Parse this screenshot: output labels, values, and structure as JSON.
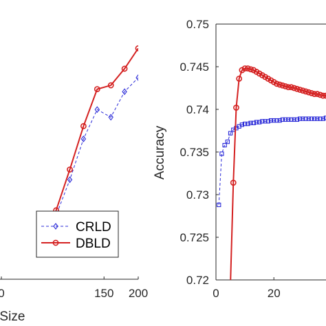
{
  "chart_data": [
    {
      "type": "line",
      "title": "",
      "xlabel": "Set Size",
      "xlabel_visible": "Set Size",
      "ylabel": "",
      "xlim": [
        0,
        200
      ],
      "ylim": [
        0,
        1
      ],
      "grid": false,
      "x_ticks": [
        0,
        150,
        200
      ],
      "x_tick_labels": [
        "0",
        "150",
        "200"
      ],
      "legend": {
        "placement": "bottom-right"
      },
      "series": [
        {
          "name": "CRLD",
          "color": "#2b2bd8",
          "line_style": "dashed",
          "marker": "diamond",
          "x": [
            60,
            80,
            100,
            120,
            140,
            160,
            180,
            200
          ],
          "y": [
            0.12,
            0.25,
            0.39,
            0.55,
            0.665,
            0.635,
            0.735,
            0.79
          ]
        },
        {
          "name": "DBLD",
          "color": "#d42020",
          "line_style": "solid",
          "marker": "circle",
          "x": [
            60,
            80,
            100,
            120,
            140,
            160,
            180,
            200
          ],
          "y": [
            0.12,
            0.27,
            0.43,
            0.6,
            0.745,
            0.76,
            0.825,
            0.905
          ]
        }
      ]
    },
    {
      "type": "line",
      "title": "",
      "xlabel": "",
      "ylabel": "Accuracy",
      "xlim": [
        0,
        38
      ],
      "ylim": [
        0.72,
        0.75
      ],
      "grid": false,
      "y_ticks": [
        0.72,
        0.725,
        0.73,
        0.735,
        0.74,
        0.745,
        0.75
      ],
      "y_tick_labels": [
        "0.72",
        "0.725",
        "0.73",
        "0.735",
        "0.74",
        "0.745",
        "0.75"
      ],
      "x_ticks": [
        0,
        20
      ],
      "x_tick_labels": [
        "0",
        "20"
      ],
      "series": [
        {
          "name": "CRLD",
          "color": "#2b2bd8",
          "line_style": "dashed",
          "marker": "square",
          "x": [
            1,
            2,
            3,
            4,
            5,
            6,
            7,
            8,
            9,
            10,
            11,
            12,
            13,
            14,
            15,
            16,
            17,
            18,
            19,
            20,
            21,
            22,
            23,
            24,
            25,
            26,
            27,
            28,
            29,
            30,
            31,
            32,
            33,
            34,
            35,
            36,
            37,
            38
          ],
          "y": [
            0.7288,
            0.7348,
            0.7358,
            0.7362,
            0.7372,
            0.7376,
            0.7378,
            0.738,
            0.7382,
            0.7383,
            0.7383,
            0.7384,
            0.7384,
            0.7385,
            0.7385,
            0.7386,
            0.7386,
            0.7386,
            0.7387,
            0.7387,
            0.7387,
            0.7387,
            0.7388,
            0.7388,
            0.7388,
            0.7388,
            0.7388,
            0.7388,
            0.7389,
            0.7389,
            0.7389,
            0.7389,
            0.7389,
            0.7389,
            0.7389,
            0.7389,
            0.7389,
            0.739
          ]
        },
        {
          "name": "DBLD",
          "color": "#d42020",
          "line_style": "solid",
          "marker": "circle",
          "x": [
            5,
            6,
            7,
            8,
            9,
            10,
            11,
            12,
            13,
            14,
            15,
            16,
            17,
            18,
            19,
            20,
            21,
            22,
            23,
            24,
            25,
            26,
            27,
            28,
            29,
            30,
            31,
            32,
            33,
            34,
            35,
            36,
            37,
            38
          ],
          "y": [
            0.7195,
            0.7314,
            0.7402,
            0.7436,
            0.7446,
            0.7448,
            0.7448,
            0.7447,
            0.7446,
            0.7444,
            0.7442,
            0.744,
            0.7438,
            0.7436,
            0.7434,
            0.7432,
            0.743,
            0.7429,
            0.7428,
            0.7427,
            0.7426,
            0.7426,
            0.7425,
            0.7424,
            0.7423,
            0.7422,
            0.7421,
            0.742,
            0.7419,
            0.7418,
            0.7418,
            0.7417,
            0.7416,
            0.7416
          ]
        }
      ]
    }
  ]
}
